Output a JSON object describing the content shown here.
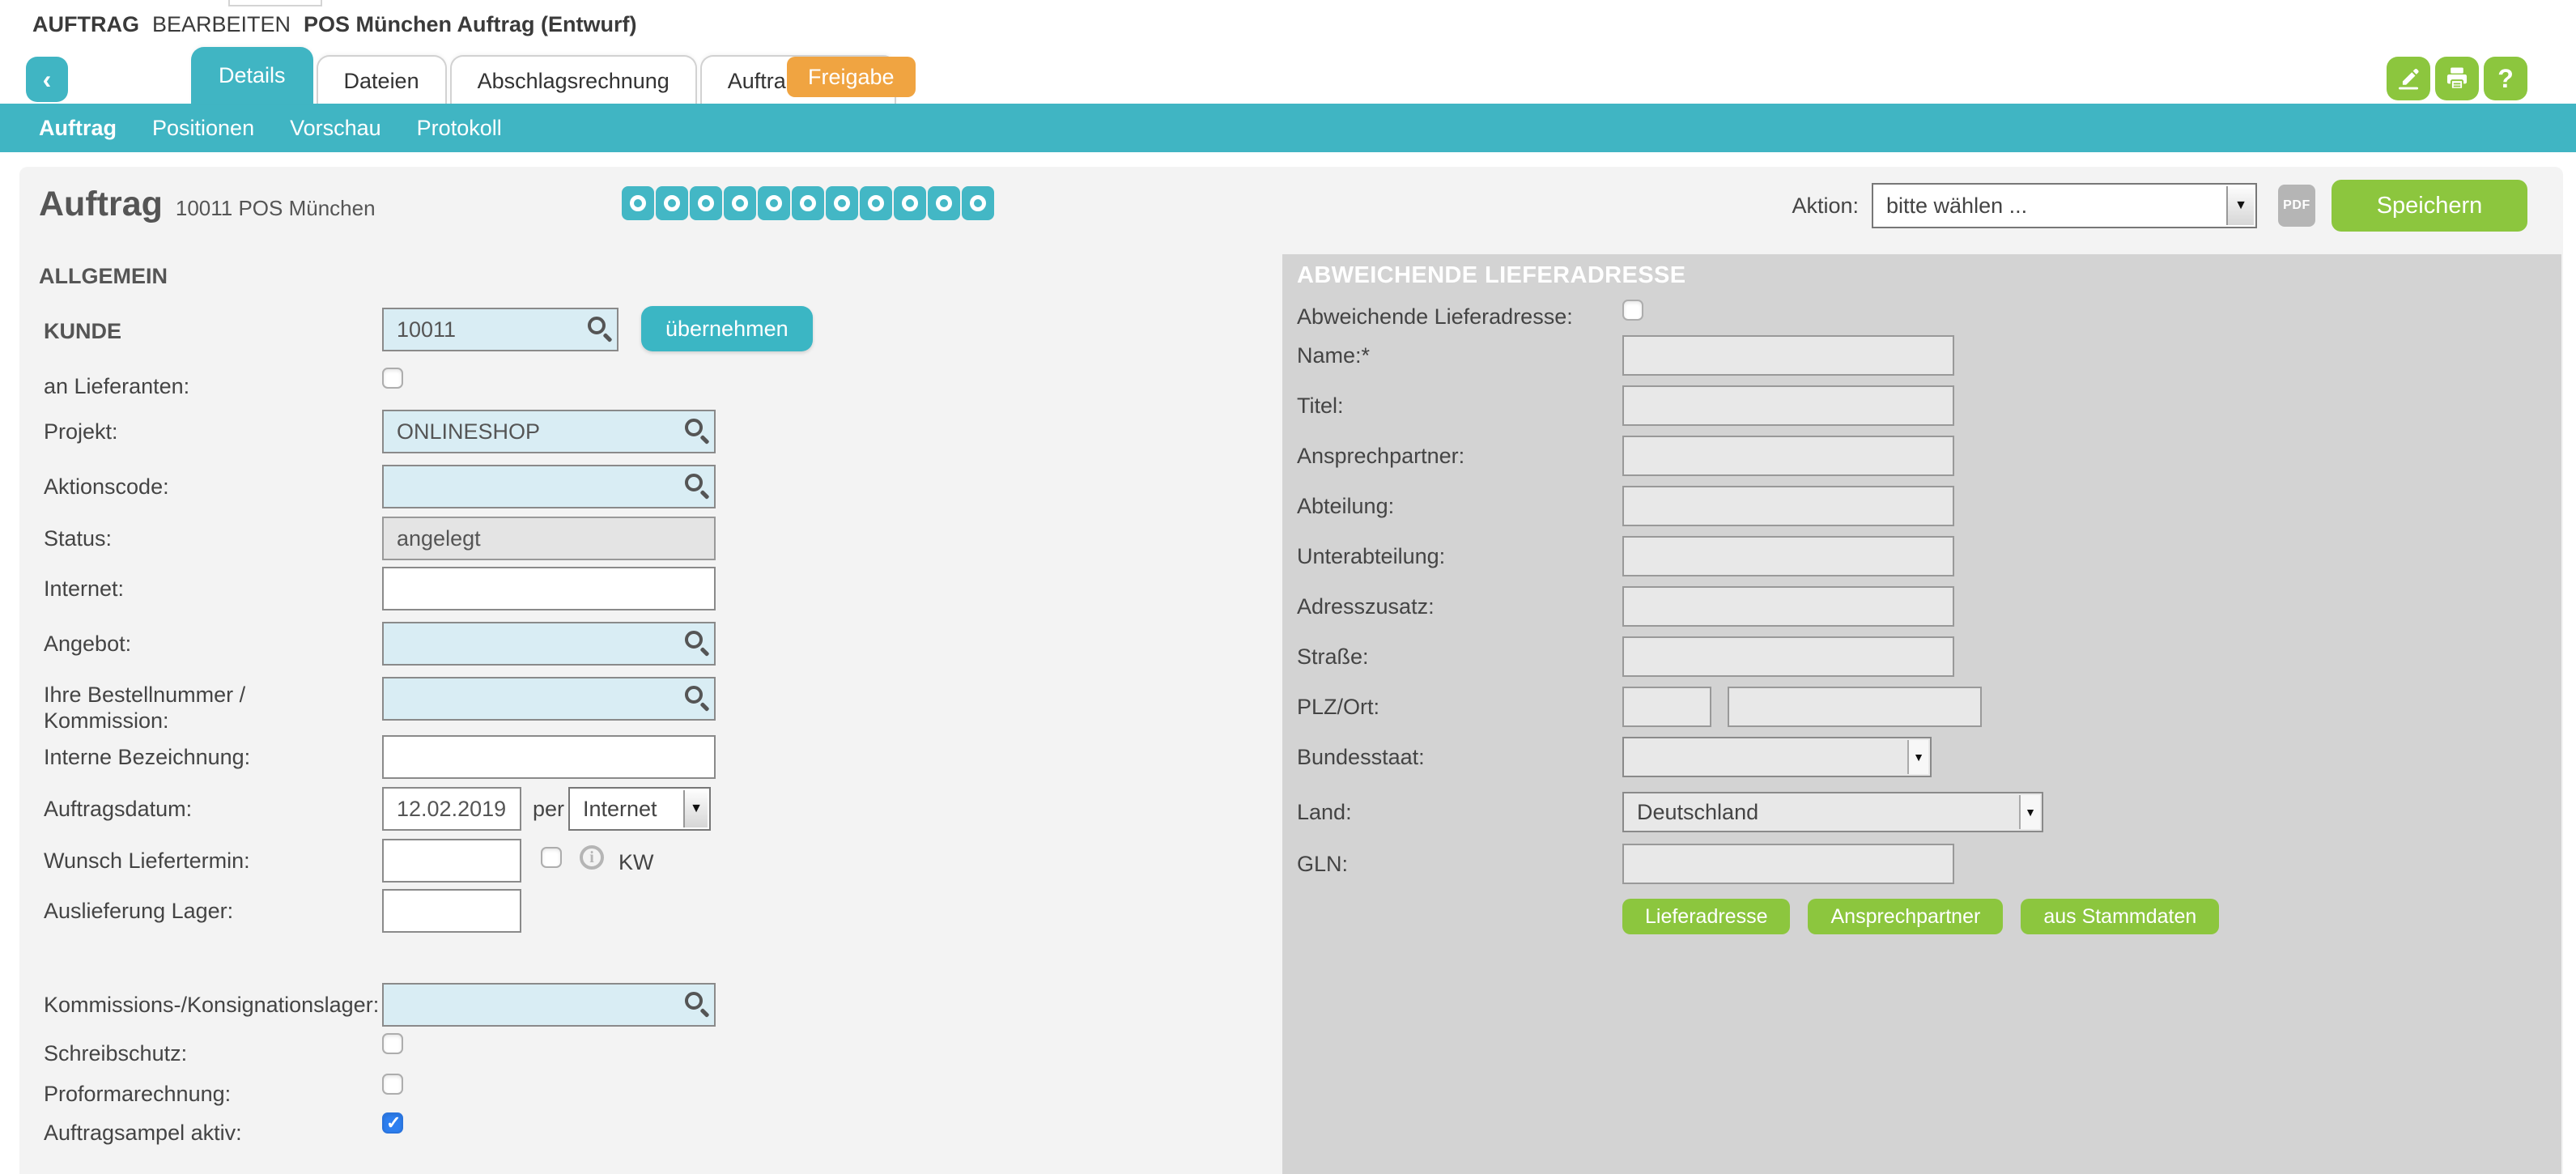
{
  "breadcrumb": {
    "section": "AUFTRAG",
    "action": "BEARBEITEN",
    "title": "POS München Auftrag (Entwurf)"
  },
  "tabs": {
    "back_icon": "‹",
    "items": [
      {
        "label": "Details",
        "active": true
      },
      {
        "label": "Dateien",
        "active": false
      },
      {
        "label": "Abschlagsrechnung",
        "active": false
      },
      {
        "label": "Auftragsampel",
        "active": false
      }
    ],
    "freigabe_label": "Freigabe",
    "help_icon": "?"
  },
  "subnav": {
    "items": [
      {
        "label": "Auftrag",
        "active": true
      },
      {
        "label": "Positionen",
        "active": false
      },
      {
        "label": "Vorschau",
        "active": false
      },
      {
        "label": "Protokoll",
        "active": false
      }
    ]
  },
  "header": {
    "title": "Auftrag",
    "subtitle": "10011 POS München",
    "ampel_circles": 11,
    "aktion_label": "Aktion:",
    "aktion_value": "bitte wählen ...",
    "pdf_label": "PDF",
    "save_label": "Speichern"
  },
  "allgemein": {
    "section_title": "ALLGEMEIN",
    "uebernehmen_label": "übernehmen",
    "fields": {
      "kunde": {
        "label": "KUNDE",
        "value": "10011"
      },
      "an_lieferanten": {
        "label": "an Lieferanten:",
        "checked": false
      },
      "projekt": {
        "label": "Projekt:",
        "value": "ONLINESHOP"
      },
      "aktionscode": {
        "label": "Aktionscode:",
        "value": ""
      },
      "status": {
        "label": "Status:",
        "value": "angelegt"
      },
      "internet": {
        "label": "Internet:",
        "value": ""
      },
      "angebot": {
        "label": "Angebot:",
        "value": ""
      },
      "bestellnummer": {
        "label": "Ihre Bestellnummer / Kommission:",
        "value": ""
      },
      "interne_bezeichnung": {
        "label": "Interne Bezeichnung:",
        "value": ""
      },
      "auftragsdatum": {
        "label": "Auftragsdatum:",
        "value": "12.02.2019",
        "per_label": "per",
        "per_value": "Internet"
      },
      "wunsch_liefertermin": {
        "label": "Wunsch Liefertermin:",
        "value": "",
        "checked": false,
        "kw_label": "KW"
      },
      "auslieferung_lager": {
        "label": "Auslieferung Lager:",
        "value": ""
      },
      "kommissionslager": {
        "label": "Kommissions-/Konsignationslager:",
        "value": ""
      },
      "schreibschutz": {
        "label": "Schreibschutz:",
        "checked": false
      },
      "proformarechnung": {
        "label": "Proformarechnung:",
        "checked": false
      },
      "auftragsampel_aktiv": {
        "label": "Auftragsampel aktiv:",
        "checked": true
      }
    }
  },
  "lieferadresse": {
    "section_title": "ABWEICHENDE LIEFERADRESSE",
    "fields": {
      "abweichende": {
        "label": "Abweichende Lieferadresse:",
        "checked": false
      },
      "name": {
        "label": "Name:*",
        "value": ""
      },
      "titel": {
        "label": "Titel:",
        "value": ""
      },
      "ansprechpartner": {
        "label": "Ansprechpartner:",
        "value": ""
      },
      "abteilung": {
        "label": "Abteilung:",
        "value": ""
      },
      "unterabteilung": {
        "label": "Unterabteilung:",
        "value": ""
      },
      "adresszusatz": {
        "label": "Adresszusatz:",
        "value": ""
      },
      "strasse": {
        "label": "Straße:",
        "value": ""
      },
      "plz_ort": {
        "label": "PLZ/Ort:",
        "plz_value": "",
        "ort_value": ""
      },
      "bundesstaat": {
        "label": "Bundesstaat:",
        "value": ""
      },
      "land": {
        "label": "Land:",
        "value": "Deutschland"
      },
      "gln": {
        "label": "GLN:",
        "value": ""
      }
    },
    "action_buttons": [
      "Lieferadresse",
      "Ansprechpartner",
      "aus Stammdaten"
    ]
  },
  "colors": {
    "teal": "#40b5c3",
    "green": "#8cc63e",
    "orange": "#f0a441",
    "panel_gray": "#d3d3d3",
    "input_blue": "#d9edf4",
    "checked_blue": "#2d7ff0"
  }
}
